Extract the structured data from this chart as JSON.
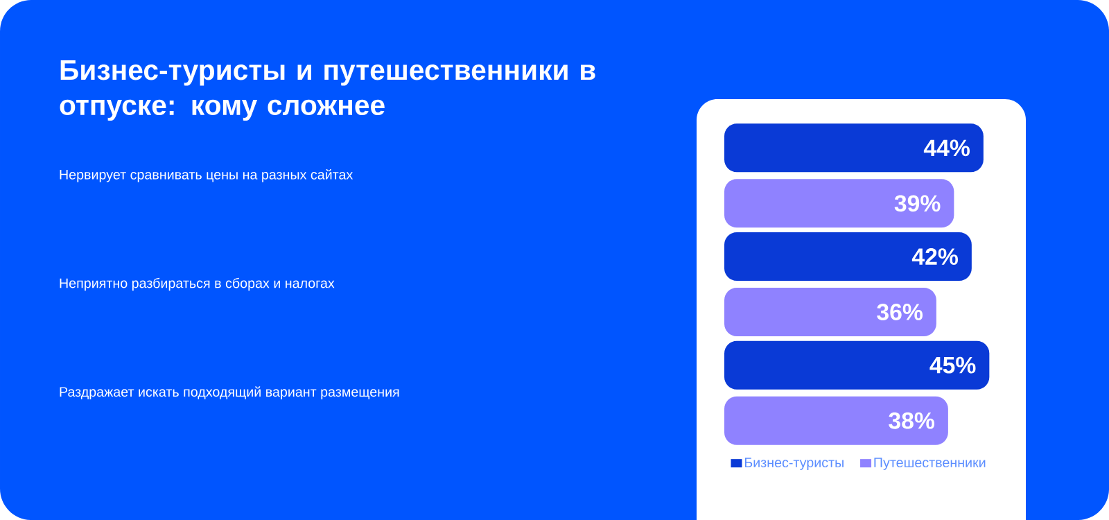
{
  "chart_data": {
    "type": "bar",
    "orientation": "horizontal",
    "title": "Бизнес-туристы и путешественники в отпуске: кому сложнее",
    "categories": [
      "Нервирует сравнивать цены на разных сайтах",
      "Неприятно разбираться в сборах и налогах",
      "Раздражает искать подходящий вариант размещения"
    ],
    "series": [
      {
        "name": "Бизнес-туристы",
        "color": "#0a3ad6",
        "values": [
          44,
          42,
          45
        ],
        "value_labels": [
          "44%",
          "42%",
          "45%"
        ]
      },
      {
        "name": "Путешественники",
        "color": "#8f82ff",
        "values": [
          39,
          36,
          38
        ],
        "value_labels": [
          "39%",
          "36%",
          "38%"
        ]
      }
    ],
    "legend": "bottom"
  }
}
